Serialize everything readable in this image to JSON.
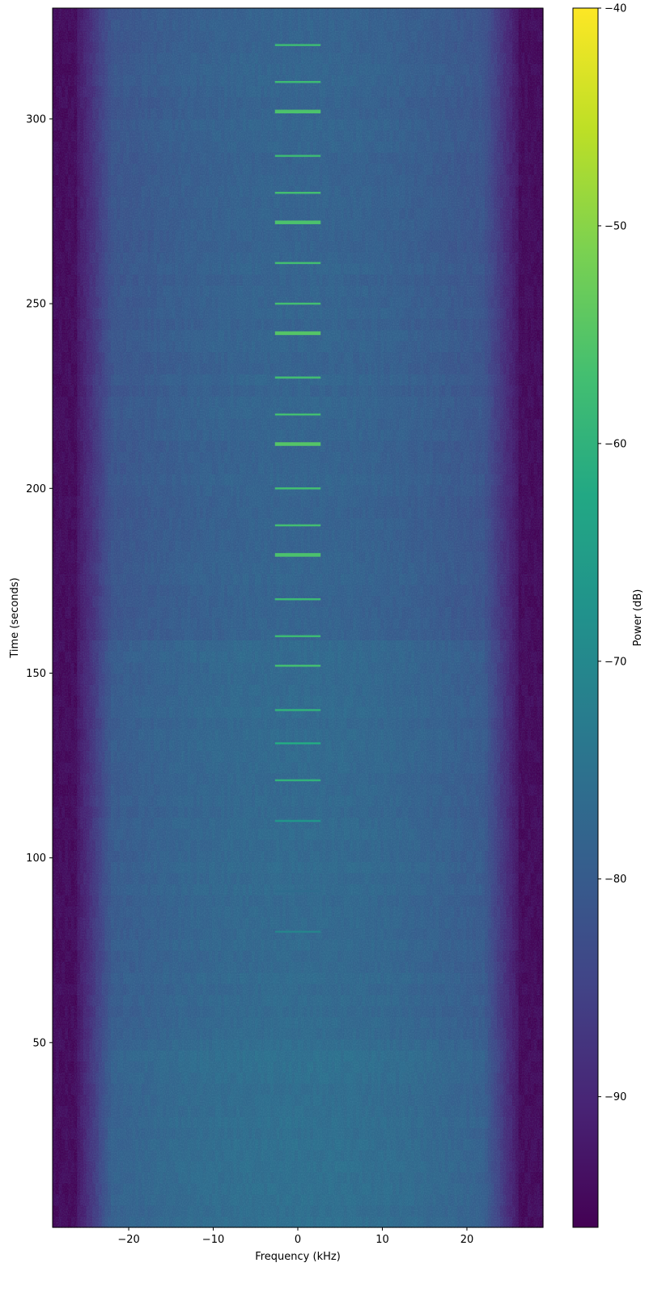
{
  "chart_data": {
    "type": "heatmap",
    "title": "",
    "xlabel": "Frequency (kHz)",
    "ylabel": "Time (seconds)",
    "colorbar_label": "Power (dB)",
    "colormap": "viridis",
    "xlim": [
      -29,
      29
    ],
    "ylim": [
      0,
      330
    ],
    "clim": [
      -96,
      -40
    ],
    "x_ticks": [
      {
        "value": -20,
        "label": "−20"
      },
      {
        "value": -10,
        "label": "−10"
      },
      {
        "value": 0,
        "label": "0"
      },
      {
        "value": 10,
        "label": "10"
      },
      {
        "value": 20,
        "label": "20"
      }
    ],
    "y_ticks": [
      {
        "value": 50,
        "label": "50"
      },
      {
        "value": 100,
        "label": "100"
      },
      {
        "value": 150,
        "label": "150"
      },
      {
        "value": 200,
        "label": "200"
      },
      {
        "value": 250,
        "label": "250"
      },
      {
        "value": 300,
        "label": "300"
      }
    ],
    "colorbar_ticks": [
      {
        "value": -40,
        "label": "−40"
      },
      {
        "value": -50,
        "label": "−50"
      },
      {
        "value": -60,
        "label": "−60"
      },
      {
        "value": -70,
        "label": "−70"
      },
      {
        "value": -80,
        "label": "−80"
      },
      {
        "value": -90,
        "label": "−90"
      }
    ],
    "passband_khz": [
      -26,
      26
    ],
    "noise_floor_db": -79,
    "band_edge_db": -95,
    "signal_bursts": [
      {
        "time_s": 80,
        "freq_start_khz": -2.7,
        "freq_end_khz": 2.7,
        "power_db": -71
      },
      {
        "time_s": 91,
        "freq_start_khz": -2.7,
        "freq_end_khz": 2.7,
        "power_db": -76
      },
      {
        "time_s": 110,
        "freq_start_khz": -2.7,
        "freq_end_khz": 2.7,
        "power_db": -67
      },
      {
        "time_s": 121,
        "freq_start_khz": -2.7,
        "freq_end_khz": 2.7,
        "power_db": -60
      },
      {
        "time_s": 131,
        "freq_start_khz": -2.7,
        "freq_end_khz": 2.7,
        "power_db": -62
      },
      {
        "time_s": 140,
        "freq_start_khz": -2.7,
        "freq_end_khz": 2.7,
        "power_db": -60
      },
      {
        "time_s": 152,
        "freq_start_khz": -2.7,
        "freq_end_khz": 2.7,
        "power_db": -57
      },
      {
        "time_s": 160,
        "freq_start_khz": -2.7,
        "freq_end_khz": 2.7,
        "power_db": -58
      },
      {
        "time_s": 170,
        "freq_start_khz": -2.7,
        "freq_end_khz": 2.7,
        "power_db": -58
      },
      {
        "time_s": 182,
        "freq_start_khz": -2.7,
        "freq_end_khz": 2.7,
        "power_db": -56
      },
      {
        "time_s": 190,
        "freq_start_khz": -2.7,
        "freq_end_khz": 2.7,
        "power_db": -57
      },
      {
        "time_s": 200,
        "freq_start_khz": -2.7,
        "freq_end_khz": 2.7,
        "power_db": -57
      },
      {
        "time_s": 212,
        "freq_start_khz": -2.7,
        "freq_end_khz": 2.7,
        "power_db": -55
      },
      {
        "time_s": 220,
        "freq_start_khz": -2.7,
        "freq_end_khz": 2.7,
        "power_db": -57
      },
      {
        "time_s": 230,
        "freq_start_khz": -2.7,
        "freq_end_khz": 2.7,
        "power_db": -57
      },
      {
        "time_s": 242,
        "freq_start_khz": -2.7,
        "freq_end_khz": 2.7,
        "power_db": -55
      },
      {
        "time_s": 250,
        "freq_start_khz": -2.7,
        "freq_end_khz": 2.7,
        "power_db": -57
      },
      {
        "time_s": 261,
        "freq_start_khz": -2.7,
        "freq_end_khz": 2.7,
        "power_db": -57
      },
      {
        "time_s": 272,
        "freq_start_khz": -2.7,
        "freq_end_khz": 2.7,
        "power_db": -56
      },
      {
        "time_s": 280,
        "freq_start_khz": -2.7,
        "freq_end_khz": 2.7,
        "power_db": -57
      },
      {
        "time_s": 290,
        "freq_start_khz": -2.7,
        "freq_end_khz": 2.7,
        "power_db": -58
      },
      {
        "time_s": 302,
        "freq_start_khz": -2.7,
        "freq_end_khz": 2.7,
        "power_db": -56
      },
      {
        "time_s": 310,
        "freq_start_khz": -2.7,
        "freq_end_khz": 2.7,
        "power_db": -58
      },
      {
        "time_s": 320,
        "freq_start_khz": -2.7,
        "freq_end_khz": 2.7,
        "power_db": -58
      }
    ]
  }
}
